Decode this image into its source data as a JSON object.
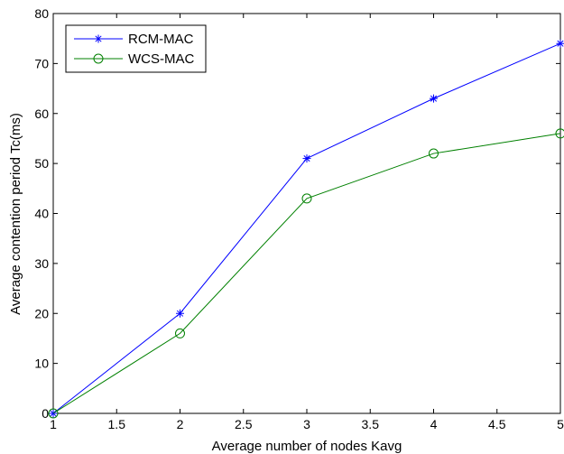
{
  "chart_data": {
    "type": "line",
    "title": "",
    "xlabel": "Average number of nodes Kavg",
    "ylabel": "Average contention period Tc(ms)",
    "xlim": [
      1,
      5
    ],
    "ylim": [
      0,
      80
    ],
    "xticks": [
      1,
      1.5,
      2,
      2.5,
      3,
      3.5,
      4,
      4.5,
      5
    ],
    "xtick_labels": [
      "1",
      "1.5",
      "2",
      "2.5",
      "3",
      "3.5",
      "4",
      "4.5",
      "5"
    ],
    "yticks": [
      0,
      10,
      20,
      30,
      40,
      50,
      60,
      70,
      80
    ],
    "ytick_labels": [
      "0",
      "10",
      "20",
      "30",
      "40",
      "50",
      "60",
      "70",
      "80"
    ],
    "grid": false,
    "legend_position": "top-left",
    "x": [
      1,
      2,
      3,
      4,
      5
    ],
    "series": [
      {
        "name": "RCM-MAC",
        "values": [
          0,
          20,
          51,
          63,
          74
        ],
        "color": "#0000ff",
        "marker": "asterisk"
      },
      {
        "name": "WCS-MAC",
        "values": [
          0,
          16,
          43,
          52,
          56
        ],
        "color": "#008000",
        "marker": "circle"
      }
    ]
  }
}
